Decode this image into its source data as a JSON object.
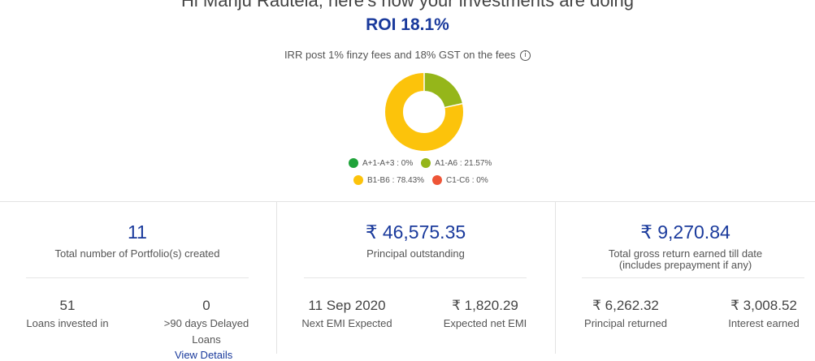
{
  "header": {
    "greeting": "Hi Manju Rautela, here's how your investments are doing",
    "roi": "ROI 18.1%",
    "irr_note": "IRR post 1% finzy fees and 18% GST on the fees",
    "info_icon": "i"
  },
  "donut": {
    "segments": [
      {
        "label": "A+1-A+3",
        "value": 0,
        "color": "#1fa33a"
      },
      {
        "label": "A1-A6",
        "value": 21.57,
        "color": "#95b61a"
      },
      {
        "label": "B1-B6",
        "value": 78.43,
        "color": "#fcc30b"
      },
      {
        "label": "C1-C6",
        "value": 0,
        "color": "#ee5537"
      }
    ],
    "legend": [
      {
        "text": "A+1-A+3 : 0%",
        "color": "#1fa33a"
      },
      {
        "text": "A1-A6 : 21.57%",
        "color": "#95b61a"
      },
      {
        "text": "B1-B6 : 78.43%",
        "color": "#fcc30b"
      },
      {
        "text": "C1-C6 : 0%",
        "color": "#ee5537"
      }
    ]
  },
  "panel_portfolios": {
    "count": "11",
    "count_label": "Total number of Portfolio(s) created",
    "loans_invested": "51",
    "loans_invested_label": "Loans invested in",
    "delayed": "0",
    "delayed_label_1": ">90 days Delayed",
    "delayed_label_2": "Loans",
    "view_details": "View Details"
  },
  "panel_principal": {
    "amount": "₹ 46,575.35",
    "amount_label": "Principal outstanding",
    "next_emi_date": "11 Sep 2020",
    "next_emi_label": "Next EMI Expected",
    "expected_emi": "₹ 1,820.29",
    "expected_emi_label": "Expected net EMI"
  },
  "panel_returns": {
    "amount": "₹ 9,270.84",
    "amount_label_1": "Total gross return earned till date",
    "amount_label_2": "(includes prepayment if any)",
    "principal_returned": "₹ 6,262.32",
    "principal_returned_label": "Principal returned",
    "interest_earned": "₹ 3,008.52",
    "interest_earned_label": "Interest earned"
  }
}
